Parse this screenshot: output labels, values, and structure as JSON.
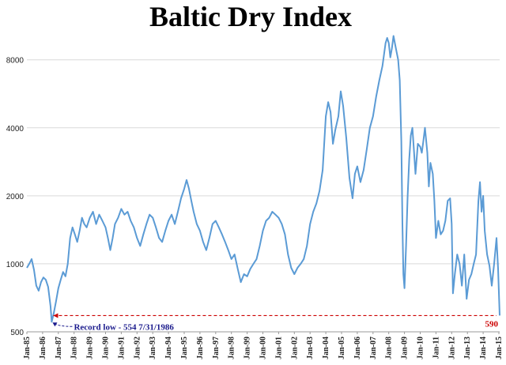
{
  "chart_data": {
    "type": "line",
    "title": "Baltic Dry Index",
    "xlabel": "",
    "ylabel": "",
    "y_scale": "log",
    "ylim": [
      500,
      10000
    ],
    "yticks": [
      500,
      1000,
      2000,
      4000,
      8000
    ],
    "ytick_labels": [
      "500",
      "1000",
      "2000",
      "4000",
      "8000"
    ],
    "xlim": [
      1985.0,
      2015.05
    ],
    "xticks": [
      {
        "x": 1985,
        "label": "Jan-85"
      },
      {
        "x": 1986,
        "label": "Jan-86"
      },
      {
        "x": 1987,
        "label": "Jan-87"
      },
      {
        "x": 1988,
        "label": "Jan-88"
      },
      {
        "x": 1989,
        "label": "Jan-89"
      },
      {
        "x": 1990,
        "label": "Jan-90"
      },
      {
        "x": 1991,
        "label": "Jan-91"
      },
      {
        "x": 1992,
        "label": "Jan-92"
      },
      {
        "x": 1993,
        "label": "Jan-93"
      },
      {
        "x": 1994,
        "label": "Jan-94"
      },
      {
        "x": 1995,
        "label": "Jan-95"
      },
      {
        "x": 1996,
        "label": "Jan-96"
      },
      {
        "x": 1997,
        "label": "Jan-97"
      },
      {
        "x": 1998,
        "label": "Jan-98"
      },
      {
        "x": 1999,
        "label": "Jan-99"
      },
      {
        "x": 2000,
        "label": "Jan-00"
      },
      {
        "x": 2001,
        "label": "Jan-01"
      },
      {
        "x": 2002,
        "label": "Jan-02"
      },
      {
        "x": 2003,
        "label": "Jan-03"
      },
      {
        "x": 2004,
        "label": "Jan-04"
      },
      {
        "x": 2005,
        "label": "Jan-05"
      },
      {
        "x": 2006,
        "label": "Jan-06"
      },
      {
        "x": 2007,
        "label": "Jan-07"
      },
      {
        "x": 2008,
        "label": "Jan-08"
      },
      {
        "x": 2009,
        "label": "Jan-09"
      },
      {
        "x": 2010,
        "label": "Jan-10"
      },
      {
        "x": 2011,
        "label": "Jan-11"
      },
      {
        "x": 2012,
        "label": "Jan-12"
      },
      {
        "x": 2013,
        "label": "Jan-13"
      },
      {
        "x": 2014,
        "label": "Jan-14"
      },
      {
        "x": 2015,
        "label": "Jan-15"
      }
    ],
    "grid": true,
    "legend": "none",
    "series": [
      {
        "color": "#5b9bd5",
        "points": [
          [
            1985.0,
            960
          ],
          [
            1985.15,
            1000
          ],
          [
            1985.3,
            1050
          ],
          [
            1985.45,
            940
          ],
          [
            1985.6,
            800
          ],
          [
            1985.75,
            760
          ],
          [
            1985.9,
            830
          ],
          [
            1986.05,
            870
          ],
          [
            1986.2,
            850
          ],
          [
            1986.35,
            790
          ],
          [
            1986.5,
            650
          ],
          [
            1986.58,
            554
          ],
          [
            1986.7,
            600
          ],
          [
            1986.85,
            680
          ],
          [
            1987.0,
            780
          ],
          [
            1987.15,
            850
          ],
          [
            1987.3,
            920
          ],
          [
            1987.45,
            880
          ],
          [
            1987.6,
            1000
          ],
          [
            1987.75,
            1300
          ],
          [
            1987.9,
            1450
          ],
          [
            1988.05,
            1350
          ],
          [
            1988.2,
            1250
          ],
          [
            1988.35,
            1400
          ],
          [
            1988.5,
            1600
          ],
          [
            1988.65,
            1500
          ],
          [
            1988.8,
            1450
          ],
          [
            1989.0,
            1600
          ],
          [
            1989.2,
            1700
          ],
          [
            1989.4,
            1500
          ],
          [
            1989.6,
            1650
          ],
          [
            1989.8,
            1550
          ],
          [
            1990.0,
            1450
          ],
          [
            1990.15,
            1300
          ],
          [
            1990.3,
            1150
          ],
          [
            1990.45,
            1300
          ],
          [
            1990.6,
            1500
          ],
          [
            1990.8,
            1600
          ],
          [
            1991.0,
            1750
          ],
          [
            1991.2,
            1650
          ],
          [
            1991.4,
            1700
          ],
          [
            1991.6,
            1550
          ],
          [
            1991.8,
            1450
          ],
          [
            1992.0,
            1300
          ],
          [
            1992.2,
            1200
          ],
          [
            1992.4,
            1350
          ],
          [
            1992.6,
            1500
          ],
          [
            1992.8,
            1650
          ],
          [
            1993.0,
            1600
          ],
          [
            1993.2,
            1450
          ],
          [
            1993.4,
            1300
          ],
          [
            1993.6,
            1250
          ],
          [
            1993.8,
            1400
          ],
          [
            1994.0,
            1550
          ],
          [
            1994.2,
            1650
          ],
          [
            1994.4,
            1500
          ],
          [
            1994.6,
            1700
          ],
          [
            1994.8,
            1950
          ],
          [
            1995.0,
            2150
          ],
          [
            1995.15,
            2350
          ],
          [
            1995.3,
            2150
          ],
          [
            1995.45,
            1900
          ],
          [
            1995.6,
            1700
          ],
          [
            1995.8,
            1500
          ],
          [
            1996.0,
            1400
          ],
          [
            1996.2,
            1250
          ],
          [
            1996.4,
            1150
          ],
          [
            1996.6,
            1300
          ],
          [
            1996.8,
            1500
          ],
          [
            1997.0,
            1550
          ],
          [
            1997.2,
            1450
          ],
          [
            1997.4,
            1350
          ],
          [
            1997.6,
            1250
          ],
          [
            1997.8,
            1150
          ],
          [
            1998.0,
            1050
          ],
          [
            1998.2,
            1100
          ],
          [
            1998.4,
            950
          ],
          [
            1998.6,
            830
          ],
          [
            1998.8,
            900
          ],
          [
            1999.0,
            880
          ],
          [
            1999.2,
            950
          ],
          [
            1999.4,
            1000
          ],
          [
            1999.6,
            1050
          ],
          [
            1999.8,
            1200
          ],
          [
            2000.0,
            1400
          ],
          [
            2000.2,
            1550
          ],
          [
            2000.4,
            1600
          ],
          [
            2000.6,
            1700
          ],
          [
            2000.8,
            1650
          ],
          [
            2001.0,
            1600
          ],
          [
            2001.2,
            1500
          ],
          [
            2001.4,
            1350
          ],
          [
            2001.6,
            1100
          ],
          [
            2001.8,
            960
          ],
          [
            2002.0,
            900
          ],
          [
            2002.2,
            960
          ],
          [
            2002.4,
            1000
          ],
          [
            2002.6,
            1050
          ],
          [
            2002.8,
            1200
          ],
          [
            2003.0,
            1500
          ],
          [
            2003.2,
            1700
          ],
          [
            2003.4,
            1850
          ],
          [
            2003.6,
            2100
          ],
          [
            2003.8,
            2600
          ],
          [
            2004.0,
            4500
          ],
          [
            2004.15,
            5200
          ],
          [
            2004.3,
            4700
          ],
          [
            2004.45,
            3400
          ],
          [
            2004.6,
            3900
          ],
          [
            2004.8,
            4500
          ],
          [
            2004.95,
            5800
          ],
          [
            2005.1,
            5000
          ],
          [
            2005.3,
            3600
          ],
          [
            2005.5,
            2400
          ],
          [
            2005.7,
            1950
          ],
          [
            2005.85,
            2500
          ],
          [
            2006.0,
            2700
          ],
          [
            2006.2,
            2300
          ],
          [
            2006.4,
            2600
          ],
          [
            2006.6,
            3200
          ],
          [
            2006.8,
            4000
          ],
          [
            2007.0,
            4500
          ],
          [
            2007.2,
            5500
          ],
          [
            2007.4,
            6500
          ],
          [
            2007.6,
            7500
          ],
          [
            2007.8,
            9500
          ],
          [
            2007.9,
            10000
          ],
          [
            2008.0,
            9500
          ],
          [
            2008.1,
            8200
          ],
          [
            2008.2,
            9000
          ],
          [
            2008.3,
            10200
          ],
          [
            2008.45,
            9000
          ],
          [
            2008.6,
            8000
          ],
          [
            2008.7,
            6500
          ],
          [
            2008.8,
            3500
          ],
          [
            2008.87,
            1500
          ],
          [
            2008.93,
            900
          ],
          [
            2009.0,
            780
          ],
          [
            2009.1,
            1200
          ],
          [
            2009.2,
            2000
          ],
          [
            2009.3,
            2900
          ],
          [
            2009.4,
            3700
          ],
          [
            2009.5,
            4000
          ],
          [
            2009.6,
            3200
          ],
          [
            2009.7,
            2500
          ],
          [
            2009.85,
            3400
          ],
          [
            2010.0,
            3300
          ],
          [
            2010.1,
            3100
          ],
          [
            2010.2,
            3500
          ],
          [
            2010.3,
            4000
          ],
          [
            2010.45,
            3100
          ],
          [
            2010.55,
            2200
          ],
          [
            2010.65,
            2800
          ],
          [
            2010.8,
            2500
          ],
          [
            2010.9,
            1900
          ],
          [
            2011.0,
            1300
          ],
          [
            2011.15,
            1550
          ],
          [
            2011.3,
            1350
          ],
          [
            2011.45,
            1400
          ],
          [
            2011.6,
            1550
          ],
          [
            2011.75,
            1900
          ],
          [
            2011.9,
            1950
          ],
          [
            2012.0,
            1500
          ],
          [
            2012.08,
            740
          ],
          [
            2012.2,
            900
          ],
          [
            2012.35,
            1100
          ],
          [
            2012.5,
            1000
          ],
          [
            2012.65,
            800
          ],
          [
            2012.8,
            1100
          ],
          [
            2012.95,
            700
          ],
          [
            2013.1,
            850
          ],
          [
            2013.25,
            900
          ],
          [
            2013.4,
            1000
          ],
          [
            2013.55,
            1100
          ],
          [
            2013.7,
            1900
          ],
          [
            2013.8,
            2300
          ],
          [
            2013.9,
            1700
          ],
          [
            2014.0,
            2000
          ],
          [
            2014.1,
            1400
          ],
          [
            2014.25,
            1100
          ],
          [
            2014.4,
            980
          ],
          [
            2014.55,
            800
          ],
          [
            2014.7,
            1000
          ],
          [
            2014.85,
            1300
          ],
          [
            2014.95,
            950
          ],
          [
            2015.05,
            590
          ]
        ]
      }
    ],
    "annotations": {
      "record_low": {
        "x": 1986.58,
        "y": 554,
        "label": "Record low - 554 7/31/1986",
        "color": "#1a1a8c"
      },
      "reference_line": {
        "y": 590,
        "color": "#cc0000"
      },
      "last_value": {
        "x": 2015.05,
        "y": 590,
        "label": "590",
        "color": "#cc0000"
      }
    }
  }
}
